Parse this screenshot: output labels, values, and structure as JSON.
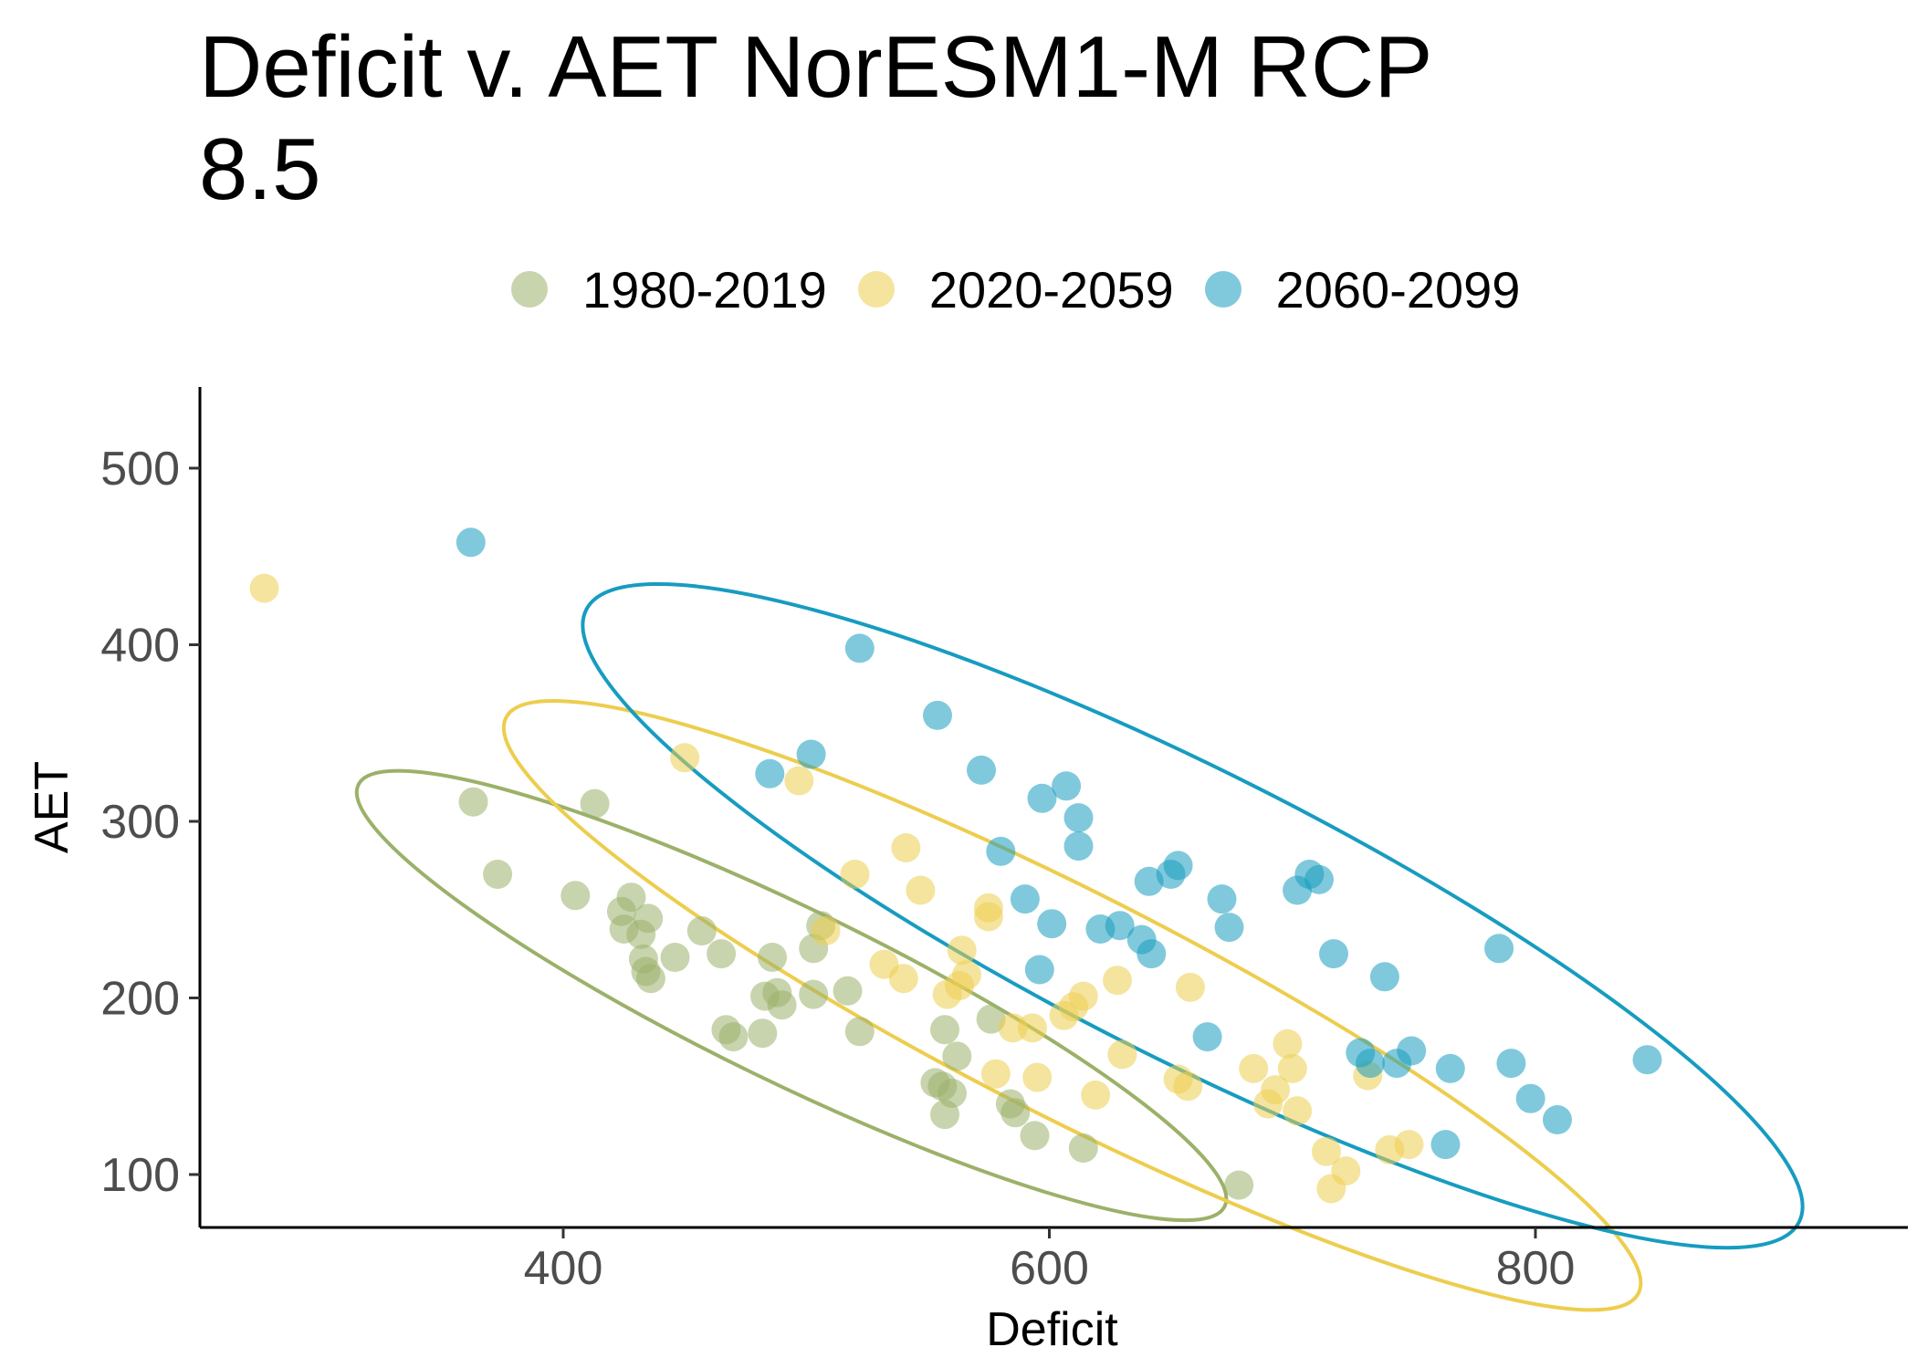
{
  "chart_data": {
    "type": "scatter",
    "title_lines": [
      "Deficit v. AET NorESM1-M RCP",
      "8.5"
    ],
    "xlabel": "Deficit",
    "ylabel": "AET",
    "xlim": [
      250,
      945
    ],
    "ylim": [
      70,
      547
    ],
    "x_ticks": [
      400,
      600,
      800
    ],
    "y_ticks": [
      100,
      200,
      300,
      400,
      500
    ],
    "grid": false,
    "legend_position": "top",
    "series": [
      {
        "name": "1980-2019",
        "color": "#9bb169",
        "points": [
          [
            363,
            311
          ],
          [
            373,
            270
          ],
          [
            405,
            258
          ],
          [
            413,
            310
          ],
          [
            424,
            249
          ],
          [
            428,
            257
          ],
          [
            425,
            239
          ],
          [
            432,
            236
          ],
          [
            435,
            245
          ],
          [
            433,
            222
          ],
          [
            434,
            215
          ],
          [
            436,
            211
          ],
          [
            446,
            223
          ],
          [
            457,
            238
          ],
          [
            465,
            225
          ],
          [
            467,
            182
          ],
          [
            470,
            178
          ],
          [
            482,
            180
          ],
          [
            486,
            223
          ],
          [
            483,
            201
          ],
          [
            488,
            203
          ],
          [
            490,
            196
          ],
          [
            503,
            228
          ],
          [
            506,
            241
          ],
          [
            503,
            202
          ],
          [
            517,
            204
          ],
          [
            522,
            181
          ],
          [
            553,
            152
          ],
          [
            556,
            150
          ],
          [
            560,
            146
          ],
          [
            557,
            134
          ],
          [
            562,
            167
          ],
          [
            557,
            182
          ],
          [
            576,
            188
          ],
          [
            584,
            140
          ],
          [
            586,
            135
          ],
          [
            594,
            122
          ],
          [
            614,
            115
          ],
          [
            678,
            94
          ]
        ]
      },
      {
        "name": "2020-2059",
        "color": "#edcd4e",
        "points": [
          [
            277,
            432
          ],
          [
            450,
            336
          ],
          [
            497,
            323
          ],
          [
            508,
            238
          ],
          [
            520,
            270
          ],
          [
            532,
            219
          ],
          [
            540,
            211
          ],
          [
            541,
            285
          ],
          [
            547,
            261
          ],
          [
            558,
            202
          ],
          [
            563,
            207
          ],
          [
            564,
            227
          ],
          [
            566,
            213
          ],
          [
            575,
            251
          ],
          [
            575,
            246
          ],
          [
            578,
            157
          ],
          [
            585,
            183
          ],
          [
            595,
            155
          ],
          [
            593,
            183
          ],
          [
            606,
            190
          ],
          [
            610,
            195
          ],
          [
            614,
            201
          ],
          [
            619,
            145
          ],
          [
            628,
            210
          ],
          [
            630,
            168
          ],
          [
            653,
            154
          ],
          [
            657,
            150
          ],
          [
            658,
            206
          ],
          [
            684,
            160
          ],
          [
            690,
            140
          ],
          [
            693,
            148
          ],
          [
            698,
            174
          ],
          [
            702,
            136
          ],
          [
            700,
            160
          ],
          [
            714,
            113
          ],
          [
            716,
            92
          ],
          [
            722,
            102
          ],
          [
            731,
            156
          ],
          [
            740,
            114
          ],
          [
            748,
            117
          ]
        ]
      },
      {
        "name": "2060-2099",
        "color": "#179cc0",
        "points": [
          [
            362,
            458
          ],
          [
            522,
            398
          ],
          [
            502,
            338
          ],
          [
            485,
            327
          ],
          [
            554,
            360
          ],
          [
            572,
            329
          ],
          [
            580,
            283
          ],
          [
            590,
            256
          ],
          [
            597,
            313
          ],
          [
            601,
            242
          ],
          [
            607,
            320
          ],
          [
            612,
            302
          ],
          [
            612,
            286
          ],
          [
            596,
            216
          ],
          [
            621,
            239
          ],
          [
            629,
            241
          ],
          [
            638,
            233
          ],
          [
            642,
            225
          ],
          [
            641,
            266
          ],
          [
            650,
            270
          ],
          [
            653,
            275
          ],
          [
            665,
            178
          ],
          [
            671,
            256
          ],
          [
            674,
            240
          ],
          [
            702,
            261
          ],
          [
            707,
            270
          ],
          [
            711,
            267
          ],
          [
            717,
            225
          ],
          [
            728,
            169
          ],
          [
            732,
            163
          ],
          [
            738,
            212
          ],
          [
            743,
            163
          ],
          [
            749,
            170
          ],
          [
            763,
            117
          ],
          [
            765,
            160
          ],
          [
            785,
            228
          ],
          [
            790,
            163
          ],
          [
            798,
            143
          ],
          [
            809,
            131
          ],
          [
            846,
            165
          ]
        ]
      }
    ]
  }
}
